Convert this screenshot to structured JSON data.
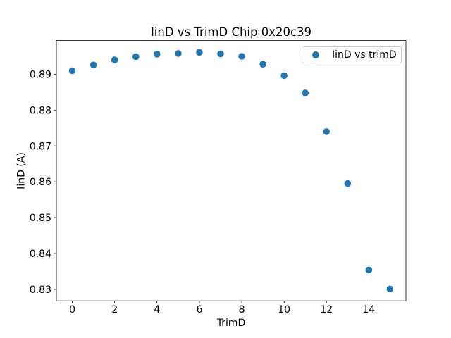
{
  "chart_data": {
    "type": "scatter",
    "title": "IinD vs TrimD Chip 0x20c39",
    "xlabel": "TrimD",
    "ylabel": "IinD (A)",
    "legend": [
      "IinD vs trimD"
    ],
    "legend_position": "upper right",
    "marker_color": "#1f77b4",
    "axes_color": "#000000",
    "legend_border_color": "#cccccc",
    "grid": false,
    "x": [
      0,
      1,
      2,
      3,
      4,
      5,
      6,
      7,
      8,
      9,
      10,
      11,
      12,
      13,
      14,
      15
    ],
    "y": [
      0.891,
      0.8926,
      0.894,
      0.8949,
      0.8956,
      0.8958,
      0.8961,
      0.8957,
      0.895,
      0.8928,
      0.8896,
      0.8848,
      0.874,
      0.8595,
      0.8354,
      0.8301
    ],
    "xlim": [
      -0.75,
      15.75
    ],
    "ylim": [
      0.8268,
      0.8994
    ],
    "xticks": [
      0,
      2,
      4,
      6,
      8,
      10,
      12,
      14
    ],
    "xtick_labels": [
      "0",
      "2",
      "4",
      "6",
      "8",
      "10",
      "12",
      "14"
    ],
    "yticks": [
      0.83,
      0.84,
      0.85,
      0.86,
      0.87,
      0.88,
      0.89
    ],
    "ytick_labels": [
      "0.83",
      "0.84",
      "0.85",
      "0.86",
      "0.87",
      "0.88",
      "0.89"
    ]
  }
}
